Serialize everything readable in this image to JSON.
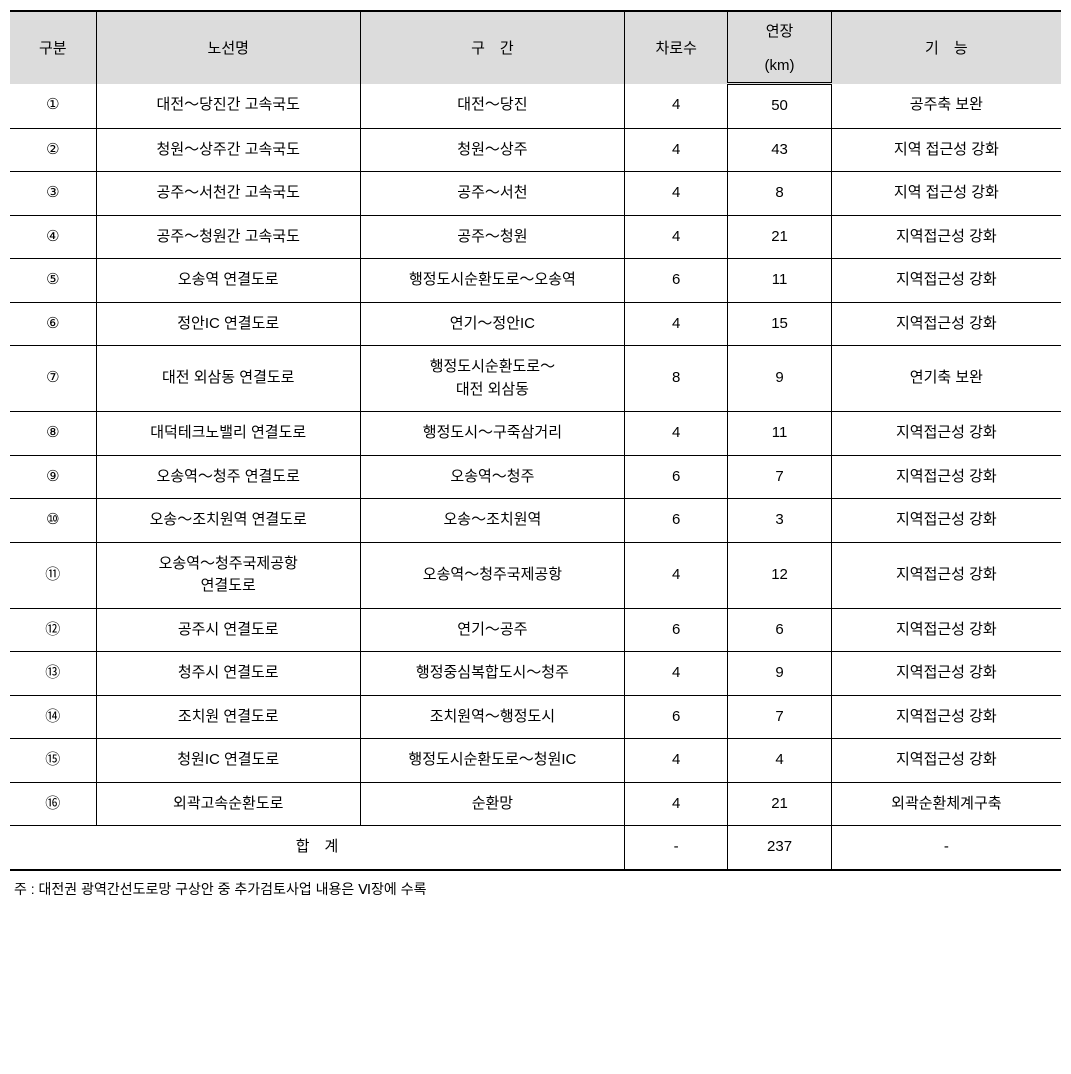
{
  "table": {
    "headers": {
      "num": "구분",
      "route": "노선명",
      "section": "구　간",
      "lanes": "차로수",
      "length_top": "연장",
      "length_bottom": "(km)",
      "function": "기　능"
    },
    "rows": [
      {
        "num": "①",
        "route": "대전～당진간 고속국도",
        "section": "대전～당진",
        "lanes": "4",
        "length": "50",
        "function": "공주축 보완"
      },
      {
        "num": "②",
        "route": "청원～상주간 고속국도",
        "section": "청원～상주",
        "lanes": "4",
        "length": "43",
        "function": "지역 접근성 강화"
      },
      {
        "num": "③",
        "route": "공주～서천간 고속국도",
        "section": "공주～서천",
        "lanes": "4",
        "length": "8",
        "function": "지역 접근성 강화"
      },
      {
        "num": "④",
        "route": "공주～청원간 고속국도",
        "section": "공주～청원",
        "lanes": "4",
        "length": "21",
        "function": "지역접근성 강화"
      },
      {
        "num": "⑤",
        "route": "오송역 연결도로",
        "section": "행정도시순환도로～오송역",
        "lanes": "6",
        "length": "11",
        "function": "지역접근성 강화"
      },
      {
        "num": "⑥",
        "route": "정안IC 연결도로",
        "section": "연기～정안IC",
        "lanes": "4",
        "length": "15",
        "function": "지역접근성 강화"
      },
      {
        "num": "⑦",
        "route": "대전 외삼동 연결도로",
        "section": "행정도시순환도로～\n대전 외삼동",
        "lanes": "8",
        "length": "9",
        "function": "연기축 보완"
      },
      {
        "num": "⑧",
        "route": "대덕테크노밸리 연결도로",
        "section": "행정도시～구죽삼거리",
        "lanes": "4",
        "length": "11",
        "function": "지역접근성 강화"
      },
      {
        "num": "⑨",
        "route": "오송역～청주 연결도로",
        "section": "오송역～청주",
        "lanes": "6",
        "length": "7",
        "function": "지역접근성 강화"
      },
      {
        "num": "⑩",
        "route": "오송～조치원역 연결도로",
        "section": "오송～조치원역",
        "lanes": "6",
        "length": "3",
        "function": "지역접근성 강화"
      },
      {
        "num": "⑪",
        "route": "오송역～청주국제공항\n연결도로",
        "section": "오송역～청주국제공항",
        "lanes": "4",
        "length": "12",
        "function": "지역접근성 강화"
      },
      {
        "num": "⑫",
        "route": "공주시 연결도로",
        "section": "연기～공주",
        "lanes": "6",
        "length": "6",
        "function": "지역접근성 강화"
      },
      {
        "num": "⑬",
        "route": "청주시 연결도로",
        "section": "행정중심복합도시～청주",
        "lanes": "4",
        "length": "9",
        "function": "지역접근성 강화"
      },
      {
        "num": "⑭",
        "route": "조치원 연결도로",
        "section": "조치원역～행정도시",
        "lanes": "6",
        "length": "7",
        "function": "지역접근성 강화"
      },
      {
        "num": "⑮",
        "route": "청원IC 연결도로",
        "section": "행정도시순환도로～청원IC",
        "lanes": "4",
        "length": "4",
        "function": "지역접근성 강화"
      },
      {
        "num": "⑯",
        "route": "외곽고속순환도로",
        "section": "순환망",
        "lanes": "4",
        "length": "21",
        "function": "외곽순환체계구축"
      }
    ],
    "total": {
      "label": "합　계",
      "lanes": "-",
      "length": "237",
      "function": "-"
    }
  },
  "footnote": "주 : 대전권 광역간선도로망 구상안 중 추가검토사업 내용은 Ⅵ장에 수록"
}
